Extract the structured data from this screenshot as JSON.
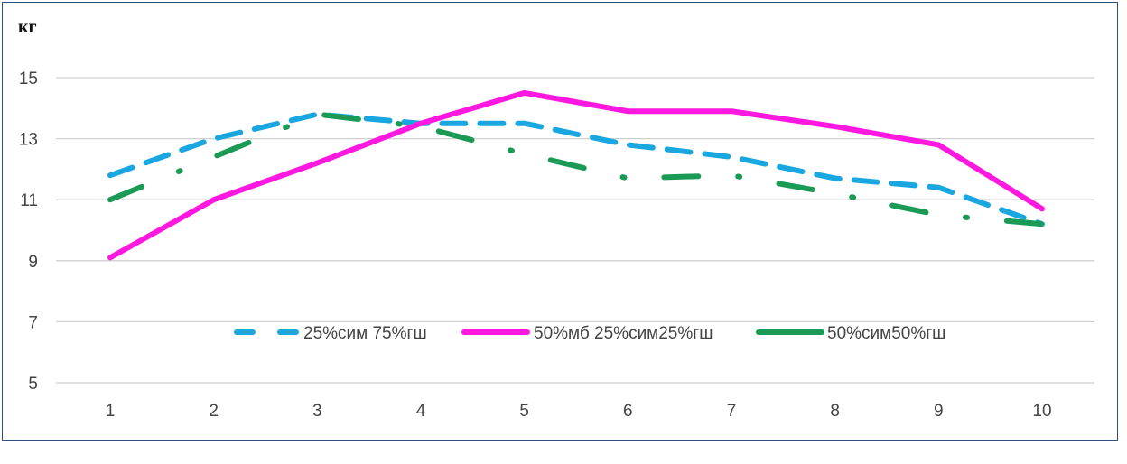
{
  "chart_data": {
    "type": "line",
    "ylabel": "кг",
    "categories": [
      "1",
      "2",
      "3",
      "4",
      "5",
      "6",
      "7",
      "8",
      "9",
      "10"
    ],
    "y_ticks": [
      "5",
      "7",
      "9",
      "11",
      "13",
      "15"
    ],
    "ylim": [
      5,
      15
    ],
    "grid": true,
    "legend_position": "inside-bottom-center",
    "series": [
      {
        "name": "25%сим 75%гш",
        "color": "#1aa7e0",
        "style": "dashed",
        "values": [
          11.8,
          13.0,
          13.8,
          13.5,
          13.5,
          12.8,
          12.4,
          11.7,
          11.4,
          10.2
        ]
      },
      {
        "name": "50%мб 25%сим25%гш",
        "color": "#ff18e0",
        "style": "solid",
        "values": [
          9.1,
          11.0,
          12.2,
          13.5,
          14.5,
          13.9,
          13.9,
          13.4,
          12.8,
          10.7
        ]
      },
      {
        "name": "50%сим50%гш",
        "color": "#1a9a55",
        "style": "dash-dot",
        "values": [
          11.0,
          12.4,
          13.8,
          13.4,
          12.5,
          11.7,
          11.8,
          11.2,
          10.5,
          10.2
        ]
      }
    ]
  }
}
